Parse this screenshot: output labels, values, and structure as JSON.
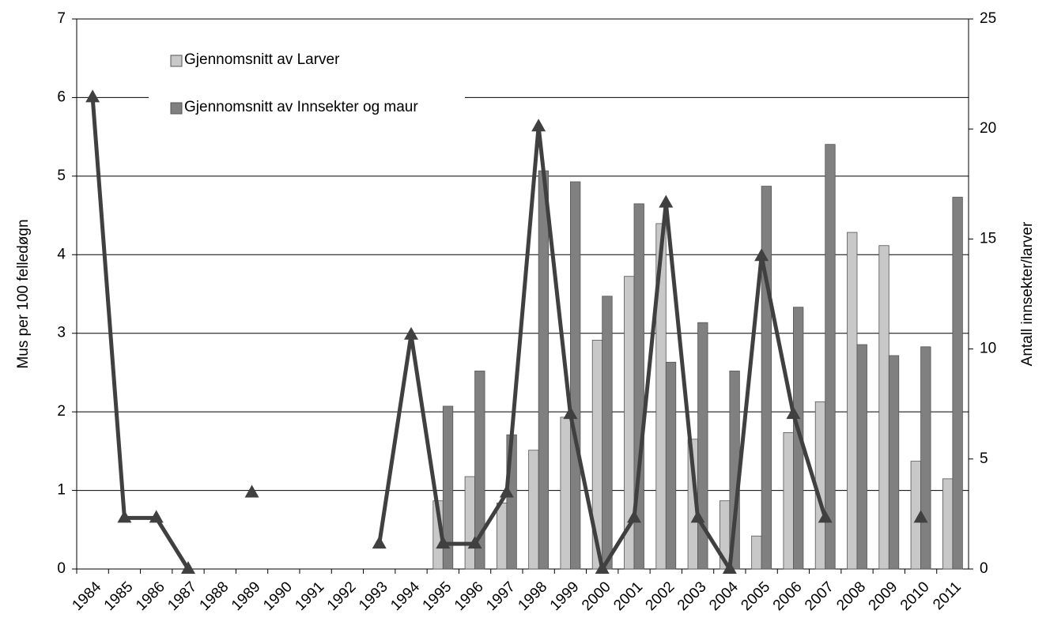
{
  "chart_data": {
    "type": "bar-line",
    "ylabel": "Mus per 100 felledøgn",
    "y2label": "Antall innsekter/larver",
    "categories": [
      "1984",
      "1985",
      "1986",
      "1987",
      "1988",
      "1989",
      "1990",
      "1991",
      "1992",
      "1993",
      "1994",
      "1995",
      "1996",
      "1997",
      "1998",
      "1999",
      "2000",
      "2001",
      "2002",
      "2003",
      "2004",
      "2005",
      "2006",
      "2007",
      "2008",
      "2009",
      "2010",
      "2011"
    ],
    "ylim": [
      0,
      7
    ],
    "yticks": [
      0,
      1,
      2,
      3,
      4,
      5,
      6,
      7
    ],
    "y2lim": [
      0,
      25
    ],
    "y2ticks": [
      0,
      5,
      10,
      15,
      20,
      25
    ],
    "grid": true,
    "legend": "upper left",
    "series": [
      {
        "type": "bar",
        "axis": "y2",
        "name": "Gjennomsnitt av Larver",
        "color": "#c8c8c8",
        "values": [
          null,
          null,
          null,
          null,
          null,
          null,
          null,
          null,
          null,
          null,
          null,
          3.1,
          4.2,
          3.0,
          5.4,
          6.9,
          10.4,
          13.3,
          15.7,
          5.9,
          3.1,
          1.5,
          6.2,
          7.6,
          15.3,
          14.7,
          4.9,
          4.1
        ]
      },
      {
        "type": "bar",
        "axis": "y2",
        "name": "Gjennomsnitt av Innsekter og maur",
        "color": "#808080",
        "values": [
          null,
          null,
          null,
          null,
          null,
          null,
          null,
          null,
          null,
          null,
          null,
          7.4,
          9.0,
          6.1,
          18.1,
          17.6,
          12.4,
          16.6,
          9.4,
          11.2,
          9.0,
          17.4,
          11.9,
          19.3,
          10.2,
          9.7,
          10.1,
          16.9
        ]
      },
      {
        "type": "line",
        "axis": "y",
        "color": "#404040",
        "values": [
          6.0,
          0.65,
          0.65,
          0,
          null,
          0.97,
          null,
          null,
          null,
          0.32,
          2.98,
          0.32,
          0.32,
          0.97,
          5.63,
          1.97,
          0,
          0.65,
          4.66,
          0.65,
          0,
          3.98,
          1.97,
          0.65,
          null,
          null,
          0.65,
          null
        ]
      }
    ]
  }
}
